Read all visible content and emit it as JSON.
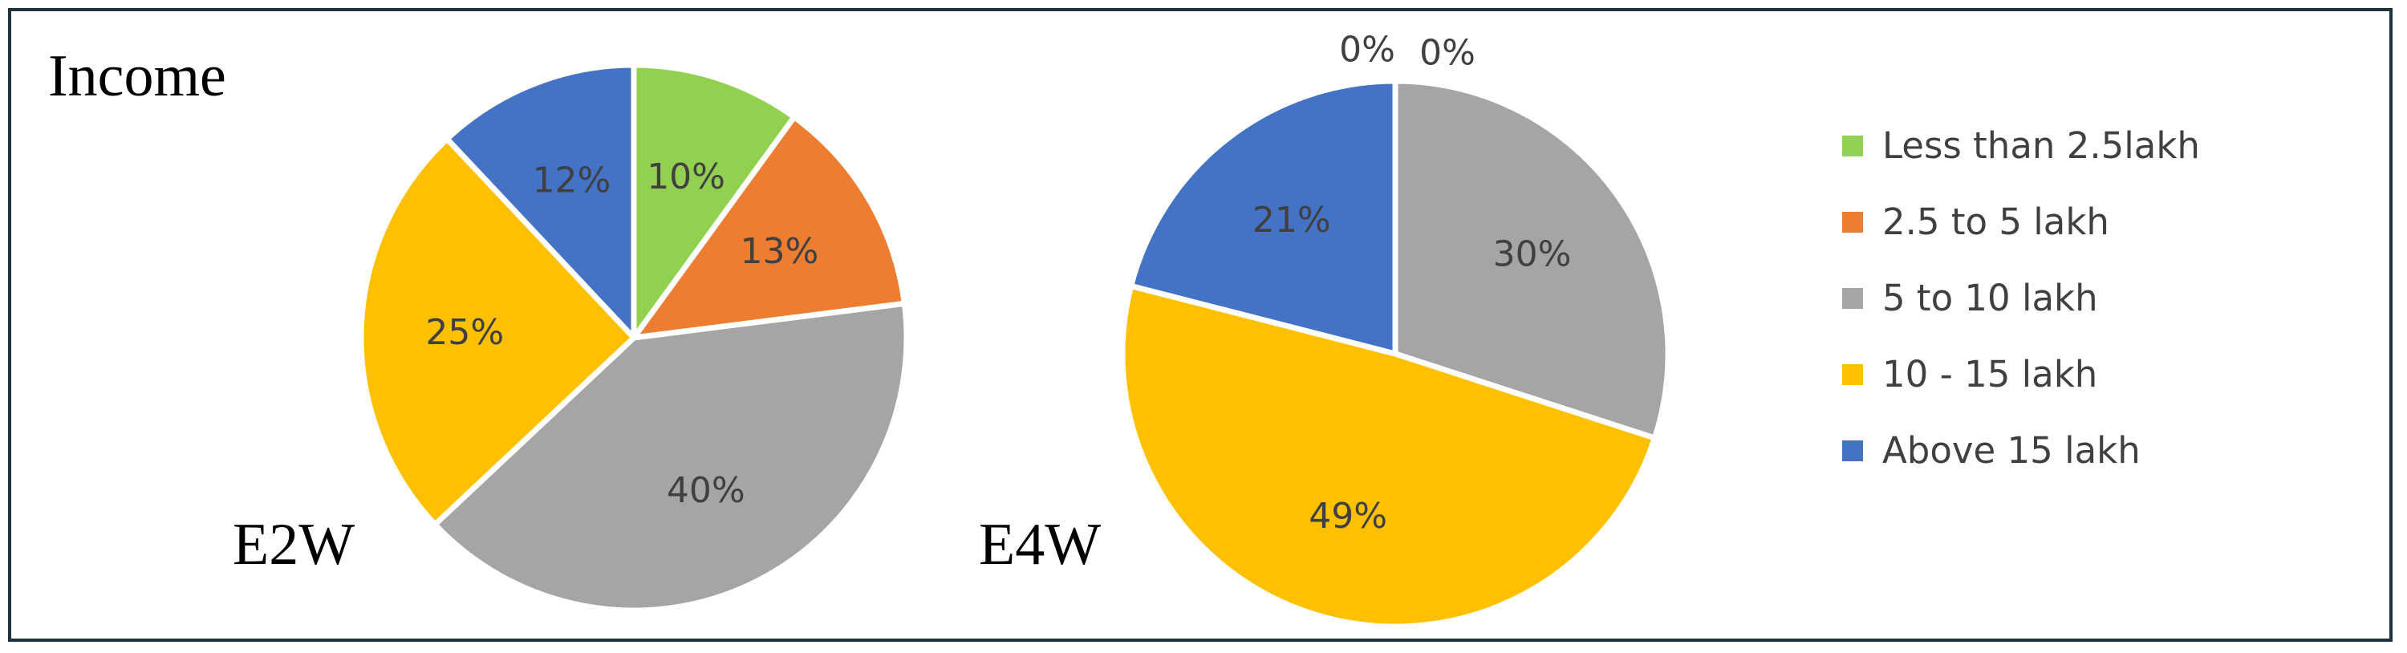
{
  "title": "Income",
  "colors": {
    "Less than 2.5lakh": "#92d050",
    "2.5 to 5 lakh": "#ed7d31",
    "5 to 10 lakh": "#a5a5a5",
    "10 - 15 lakh": "#ffc000",
    "Above 15 lakh": "#4472c4"
  },
  "chart_data": [
    {
      "type": "pie",
      "label": "E2W",
      "categories": [
        "Less than 2.5lakh",
        "2.5 to 5 lakh",
        "5 to 10 lakh",
        "10 - 15 lakh",
        "Above 15 lakh"
      ],
      "values": [
        10,
        13,
        40,
        25,
        12
      ],
      "data_labels": [
        "10%",
        "13%",
        "40%",
        "25%",
        "12%"
      ],
      "legend": "right"
    },
    {
      "type": "pie",
      "label": "E4W",
      "categories": [
        "Less than 2.5lakh",
        "2.5 to 5 lakh",
        "5 to 10 lakh",
        "10 - 15 lakh",
        "Above 15 lakh"
      ],
      "values": [
        0,
        0,
        30,
        49,
        21
      ],
      "data_labels": [
        "0%",
        "0%",
        "30%",
        "49%",
        "21%"
      ],
      "legend": "right"
    }
  ]
}
